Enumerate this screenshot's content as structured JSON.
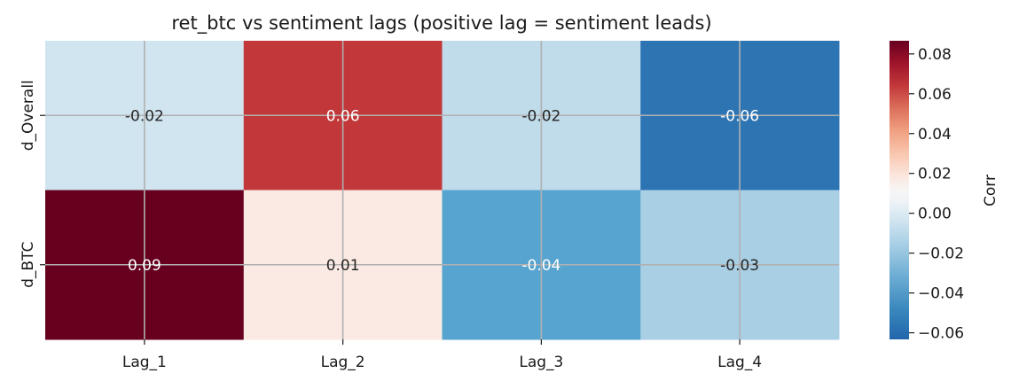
{
  "chart_data": {
    "type": "heatmap",
    "title": "ret_btc vs sentiment lags (positive lag = sentiment leads)",
    "x_categories": [
      "Lag_1",
      "Lag_2",
      "Lag_3",
      "Lag_4"
    ],
    "y_categories": [
      "d_Overall",
      "d_BTC"
    ],
    "values": [
      [
        -0.02,
        0.06,
        -0.02,
        -0.06
      ],
      [
        0.09,
        0.01,
        -0.04,
        -0.03
      ]
    ],
    "cell_labels": [
      [
        "-0.02",
        "0.06",
        "-0.02",
        "-0.06"
      ],
      [
        "0.09",
        "0.01",
        "-0.04",
        "-0.03"
      ]
    ],
    "cell_label_colors": [
      [
        "#262626",
        "#ffffff",
        "#262626",
        "#ffffff"
      ],
      [
        "#ffffff",
        "#262626",
        "#ffffff",
        "#262626"
      ]
    ],
    "cell_colors": [
      [
        "#d1e5f0",
        "#c2383a",
        "#c0dbea",
        "#2d74b3"
      ],
      [
        "#67001f",
        "#fbeae3",
        "#56a4cf",
        "#a9cfe5"
      ]
    ],
    "colormap": "RdBu_r",
    "colorbar": {
      "label": "Corr",
      "range": [
        -0.0633,
        0.0866
      ],
      "ticks": [
        -0.06,
        -0.04,
        -0.02,
        0.0,
        0.02,
        0.04,
        0.06,
        0.08
      ],
      "tick_labels": [
        "−0.06",
        "−0.04",
        "−0.02",
        "0.00",
        "0.02",
        "0.04",
        "0.06",
        "0.08"
      ]
    },
    "grid": true
  }
}
